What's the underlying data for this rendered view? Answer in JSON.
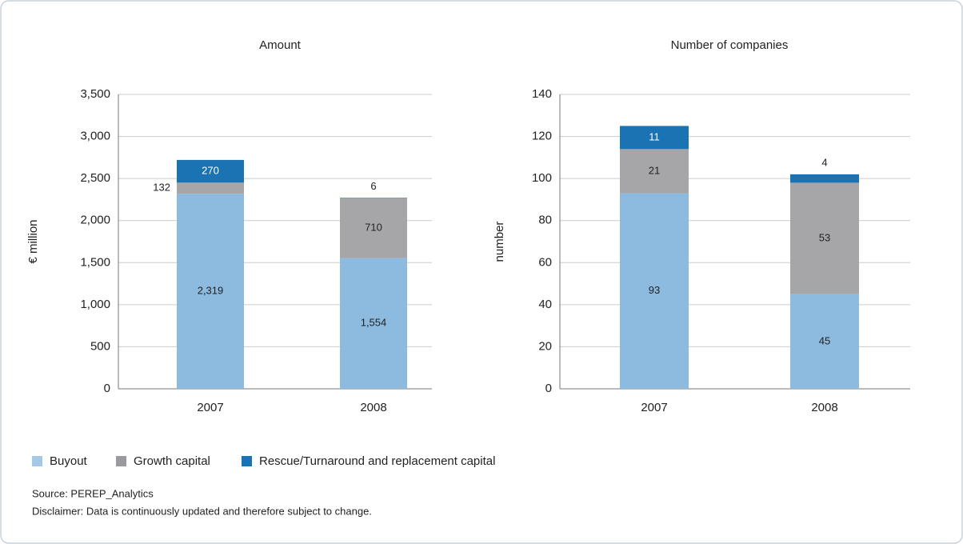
{
  "chart_data": [
    {
      "type": "bar",
      "stacked": true,
      "title": "Amount",
      "y_label": "€ million",
      "categories": [
        "2007",
        "2008"
      ],
      "series": [
        {
          "color": "#8dbbe0",
          "values": [
            2319,
            1554
          ],
          "value_labels": [
            "2,319",
            "1,554"
          ]
        },
        {
          "color": "#a6a6a8",
          "values": [
            132,
            710
          ]
        },
        {
          "color": "#1a73b2",
          "values": [
            270,
            6
          ]
        }
      ],
      "ylim": [
        0,
        3500
      ],
      "yticks": [
        0,
        500,
        {
          "value": 1000,
          "label": "1,000"
        },
        {
          "value": 1500,
          "label": "1,500"
        },
        {
          "value": 2000,
          "label": "2,000"
        },
        {
          "value": 2500,
          "label": "2,500"
        },
        {
          "value": 3000,
          "label": "3,000"
        },
        {
          "value": 3500,
          "label": "3,500"
        }
      ],
      "grid": true
    },
    {
      "type": "bar",
      "stacked": true,
      "title": "Number of companies",
      "y_label": "number",
      "categories": [
        "2007",
        "2008"
      ],
      "series": [
        {
          "color": "#8dbbe0",
          "values": [
            93,
            45
          ]
        },
        {
          "color": "#a6a6a8",
          "values": [
            21,
            53
          ]
        },
        {
          "color": "#1a73b2",
          "values": [
            11,
            4
          ]
        }
      ],
      "ylim": [
        0,
        140
      ],
      "yticks": [
        0,
        20,
        40,
        60,
        80,
        100,
        120,
        140
      ],
      "grid": true
    }
  ],
  "legend": [
    {
      "name": "Buyout",
      "color": "#a5c8e4"
    },
    {
      "name": "Growth capital",
      "color": "#9a9a9c"
    },
    {
      "name": "Rescue/Turnaround and replacement capital",
      "color": "#1a73b2"
    }
  ],
  "source": "Source: PEREP_Analytics",
  "disclaimer": "Disclaimer: Data is continuously updated and therefore subject to change."
}
